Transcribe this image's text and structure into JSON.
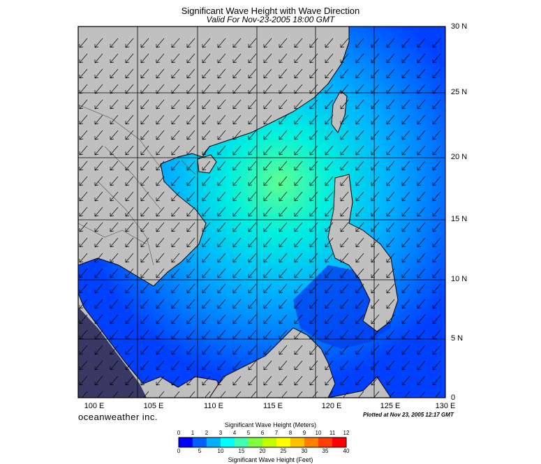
{
  "title": "Significant Wave Height with Wave Direction",
  "subtitle": "Valid For Nov-23-2005 18:00 GMT",
  "lat_labels": [
    "30 N",
    "25 N",
    "20 N",
    "15 N",
    "10 N",
    "5 N",
    "0"
  ],
  "lon_labels": [
    "100 E",
    "105 E",
    "110 E",
    "115 E",
    "120 E",
    "125 E",
    "130 E"
  ],
  "brand": "oceanweather inc.",
  "plotted": "Plotted at Nov 23, 2005 12:17 GMT",
  "colorbar": {
    "meters_title": "Significant Wave Height (Meters)",
    "feet_title": "Significant Wave Height (Feet)",
    "meters_ticks": [
      "0",
      "1",
      "2",
      "3",
      "4",
      "5",
      "6",
      "7",
      "8",
      "9",
      "10",
      "11",
      "12"
    ],
    "feet_ticks": [
      "0",
      "5",
      "10",
      "15",
      "20",
      "25",
      "30",
      "35",
      "40"
    ],
    "colors": [
      "#0000ff",
      "#0060ff",
      "#00b0ff",
      "#00ffff",
      "#40ffb0",
      "#80ff40",
      "#c0ff00",
      "#ffff00",
      "#ffc000",
      "#ff8000",
      "#ff4000",
      "#ff0000"
    ]
  },
  "map_colors": {
    "land": "#c0c0c0",
    "sea_low": "#0030ff",
    "sea_mid": "#0090ff",
    "sea_high": "#00e0ff",
    "peak": "#60ff80"
  }
}
